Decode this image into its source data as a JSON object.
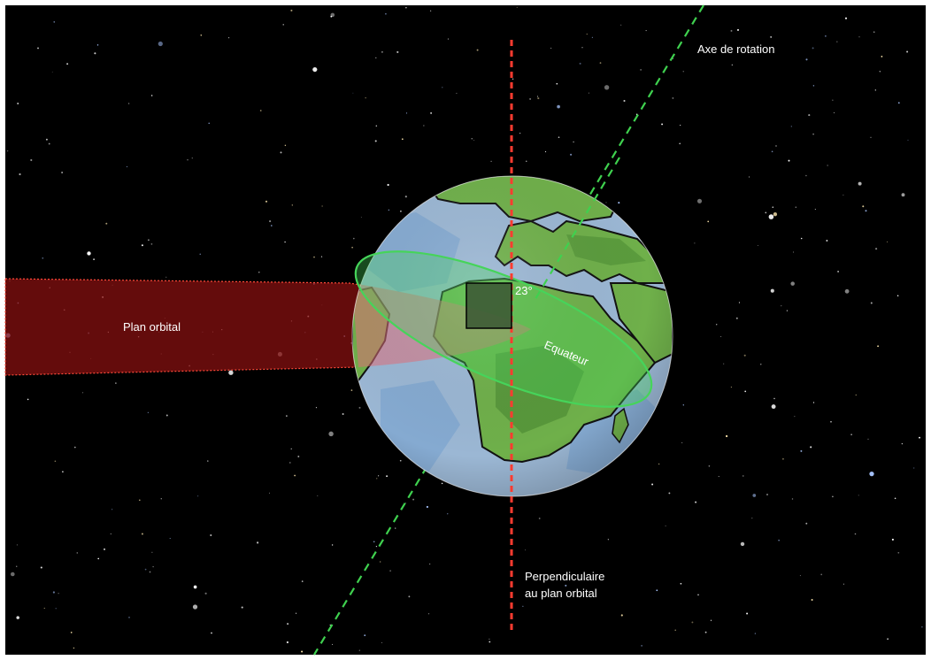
{
  "labels": {
    "rotation_axis": "Axe de rotation",
    "orbital_plane": "Plan orbital",
    "angle": "23°",
    "equator": "Equateur",
    "perpendicular_line1": "Perpendiculaire",
    "perpendicular_line2": "au plan orbital"
  },
  "colors": {
    "space": "#000000",
    "ocean": "#9bb7d4",
    "ocean_deep": "#7fa6cf",
    "land": "#6fb04a",
    "land_dark": "#4f8f35",
    "orbital_plane": "#8b1010",
    "perpendicular": "#ff3b30",
    "rotation_axis": "#3fd14f",
    "equator": "#46d45a",
    "angle_box": "#3d5a35"
  },
  "tilt_degrees": 23
}
